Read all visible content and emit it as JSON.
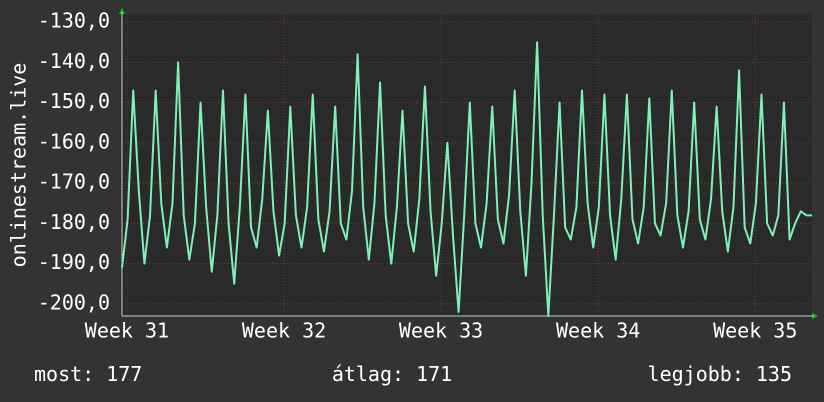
{
  "chart_data": {
    "type": "line",
    "y_label": "onlinestream.live",
    "x": [
      0,
      0.25,
      0.5,
      0.75,
      1,
      1.25,
      1.5,
      1.75,
      2,
      2.25,
      2.5,
      2.75,
      3,
      3.25,
      3.5,
      3.75,
      4,
      4.25,
      4.5,
      4.75,
      5,
      5.25,
      5.5,
      5.75,
      6,
      6.25,
      6.5,
      6.75,
      7,
      7.25,
      7.5,
      7.75,
      8,
      8.25,
      8.5,
      8.75,
      9,
      9.25,
      9.5,
      9.75,
      10,
      10.25,
      10.5,
      10.75,
      11,
      11.25,
      11.5,
      11.75,
      12,
      12.25,
      12.5,
      12.75,
      13,
      13.25,
      13.5,
      13.75,
      14,
      14.25,
      14.5,
      14.75,
      15,
      15.25,
      15.5,
      15.75,
      16,
      16.25,
      16.5,
      16.75,
      17,
      17.25,
      17.5,
      17.75,
      18,
      18.25,
      18.5,
      18.75,
      19,
      19.25,
      19.5,
      19.75,
      20,
      20.25,
      20.5,
      20.75,
      21,
      21.25,
      21.5,
      21.75,
      22,
      22.25,
      22.5,
      22.75,
      23,
      23.25,
      23.5,
      23.75,
      24,
      24.25,
      24.5,
      24.75,
      25,
      25.25,
      25.5,
      25.75,
      26,
      26.25,
      26.5,
      26.75,
      27,
      27.25,
      27.5,
      27.75,
      28,
      28.25,
      28.5,
      28.75,
      29,
      29.25,
      29.5,
      29.75,
      30,
      30.25,
      30.5,
      30.75
    ],
    "series": [
      {
        "name": "onlinestream.live",
        "color": "#7ff0b8",
        "values": [
          -191,
          -179,
          -147,
          -172,
          -190,
          -178,
          -147,
          -175,
          -186,
          -175,
          -140,
          -178,
          -189,
          -180,
          -150,
          -176,
          -192,
          -178,
          -147,
          -180,
          -195,
          -176,
          -148,
          -181,
          -186,
          -174,
          -152,
          -177,
          -188,
          -180,
          -151,
          -178,
          -186,
          -176,
          -148,
          -179,
          -187,
          -177,
          -151,
          -180,
          -184,
          -172,
          -138,
          -176,
          -189,
          -175,
          -145,
          -178,
          -190,
          -176,
          -152,
          -180,
          -187,
          -174,
          -146,
          -177,
          -193,
          -180,
          -160,
          -183,
          -202,
          -178,
          -150,
          -180,
          -186,
          -175,
          -151,
          -179,
          -185,
          -173,
          -147,
          -177,
          -193,
          -170,
          -135,
          -178,
          -203,
          -178,
          -150,
          -181,
          -184,
          -176,
          -147,
          -175,
          -186,
          -176,
          -148,
          -178,
          -189,
          -174,
          -148,
          -179,
          -185,
          -176,
          -149,
          -180,
          -183,
          -175,
          -147,
          -178,
          -186,
          -177,
          -150,
          -179,
          -184,
          -174,
          -151,
          -177,
          -187,
          -176,
          -142,
          -181,
          -185,
          -175,
          -148,
          -180,
          -183,
          -178,
          -150,
          -184,
          -180,
          -177,
          -178,
          -178
        ]
      }
    ],
    "xlim": [
      0,
      30.75
    ],
    "xticks": [
      {
        "value": 0.22,
        "label": "Week 31"
      },
      {
        "value": 7.22,
        "label": "Week 32"
      },
      {
        "value": 14.22,
        "label": "Week 33"
      },
      {
        "value": 21.22,
        "label": "Week 34"
      },
      {
        "value": 28.22,
        "label": "Week 35"
      }
    ],
    "ylim": [
      -203,
      -128
    ],
    "yticks": [
      {
        "value": -130,
        "label": "-130,0"
      },
      {
        "value": -140,
        "label": "-140,0"
      },
      {
        "value": -150,
        "label": "-150,0"
      },
      {
        "value": -160,
        "label": "-160,0"
      },
      {
        "value": -170,
        "label": "-170,0"
      },
      {
        "value": -180,
        "label": "-180,0"
      },
      {
        "value": -190,
        "label": "-190,0"
      },
      {
        "value": -200,
        "label": "-200,0"
      }
    ],
    "grid": true
  },
  "stats": [
    {
      "label": "most:",
      "value": 177
    },
    {
      "label": "átlag:",
      "value": 171
    },
    {
      "label": "legjobb:",
      "value": 135
    }
  ]
}
